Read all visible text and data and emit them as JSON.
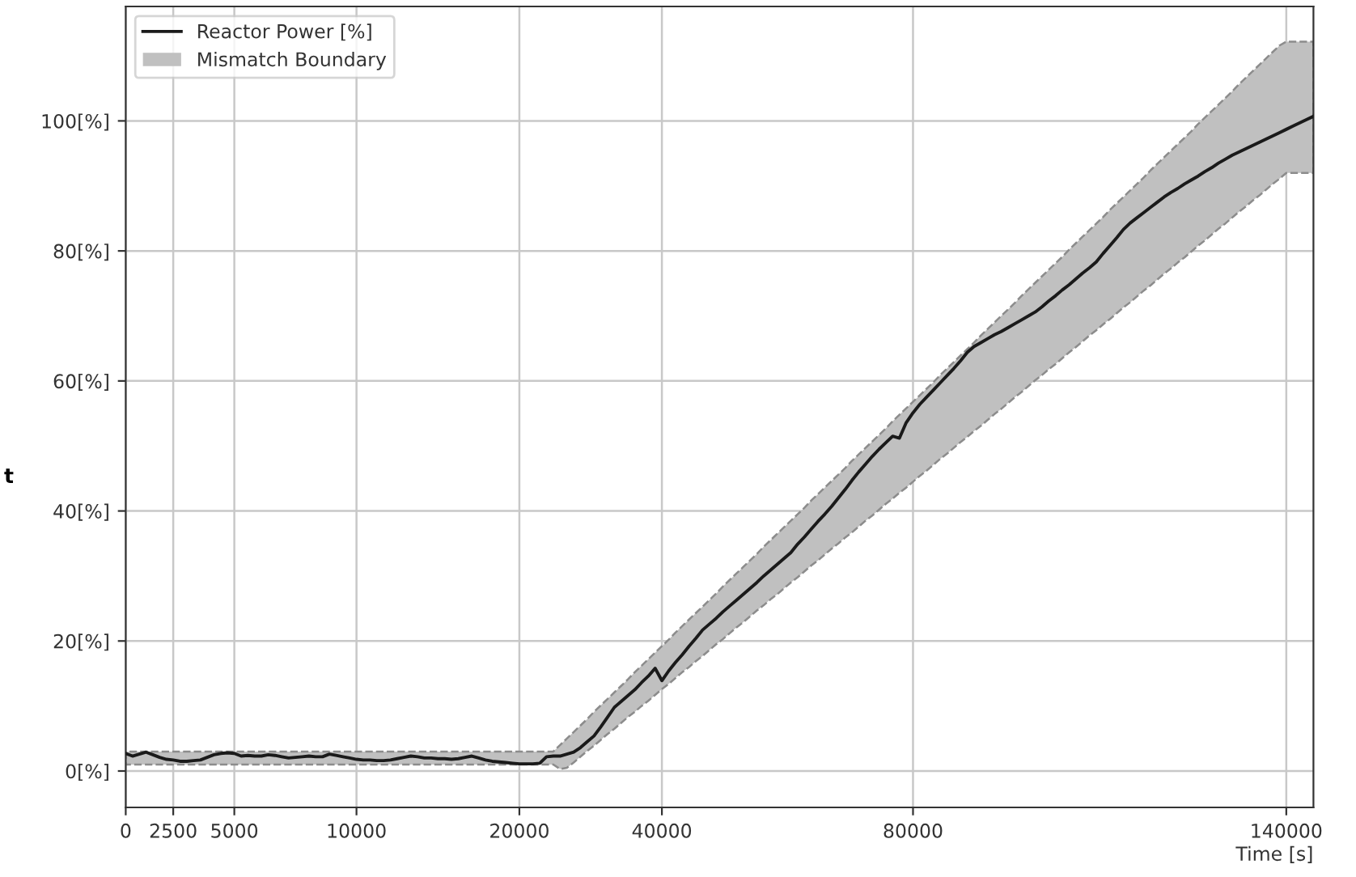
{
  "chart_data": {
    "type": "line",
    "xlabel": "Time [s]",
    "annotations": [
      "t"
    ],
    "categories": [
      "0",
      null,
      null,
      null,
      null,
      null,
      null,
      "2500",
      null,
      null,
      null,
      null,
      null,
      null,
      null,
      null,
      "5000",
      null,
      null,
      null,
      null,
      null,
      null,
      null,
      null,
      null,
      null,
      null,
      null,
      null,
      null,
      null,
      null,
      null,
      "10000",
      null,
      null,
      null,
      null,
      null,
      null,
      null,
      null,
      null,
      null,
      null,
      null,
      null,
      null,
      null,
      null,
      null,
      null,
      null,
      null,
      null,
      null,
      null,
      "20000",
      null,
      null,
      null,
      null,
      null,
      null,
      null,
      null,
      null,
      null,
      null,
      null,
      null,
      null,
      null,
      null,
      null,
      null,
      null,
      null,
      "40000",
      null,
      null,
      null,
      null,
      null,
      null,
      null,
      null,
      null,
      null,
      null,
      null,
      null,
      null,
      null,
      null,
      null,
      null,
      null,
      null,
      null,
      null,
      null,
      null,
      null,
      null,
      null,
      null,
      null,
      null,
      null,
      null,
      null,
      null,
      null,
      null,
      "80000",
      null,
      null,
      null,
      null,
      null,
      null,
      null,
      null,
      null,
      null,
      null,
      null,
      null,
      null,
      null,
      null,
      null,
      null,
      null,
      null,
      null,
      null,
      null,
      null,
      null,
      null,
      null,
      null,
      null,
      null,
      null,
      null,
      null,
      null,
      null,
      null,
      null,
      null,
      null,
      null,
      null,
      null,
      null,
      null,
      null,
      null,
      null,
      null,
      null,
      null,
      null,
      null,
      null,
      null,
      "140000",
      null,
      null,
      null,
      null
    ],
    "series": [
      {
        "name": "Reactor Power [%]",
        "color": "#1a1a1a",
        "line_style": "solid",
        "values": [
          2.7,
          2.3,
          2.6,
          2.9,
          2.5,
          2.1,
          1.8,
          1.7,
          1.5,
          1.5,
          1.6,
          1.7,
          2.1,
          2.5,
          2.7,
          2.8,
          2.7,
          2.3,
          2.4,
          2.3,
          2.3,
          2.5,
          2.4,
          2.2,
          2.0,
          2.1,
          2.2,
          2.3,
          2.2,
          2.2,
          2.6,
          2.4,
          2.2,
          2.0,
          1.8,
          1.7,
          1.7,
          1.6,
          1.6,
          1.7,
          1.9,
          2.1,
          2.3,
          2.2,
          2.0,
          2.0,
          1.9,
          1.9,
          1.8,
          1.9,
          2.1,
          2.3,
          2.0,
          1.7,
          1.5,
          1.4,
          1.3,
          1.2,
          1.1,
          1.1,
          1.1,
          1.2,
          2.2,
          2.3,
          2.3,
          2.6,
          2.9,
          3.6,
          4.5,
          5.4,
          6.8,
          8.3,
          9.8,
          10.7,
          11.6,
          12.5,
          13.6,
          14.6,
          15.8,
          13.9,
          15.4,
          16.7,
          17.9,
          19.2,
          20.4,
          21.7,
          22.6,
          23.5,
          24.5,
          25.4,
          26.3,
          27.2,
          28.1,
          29.0,
          30.0,
          30.9,
          31.8,
          32.7,
          33.6,
          34.9,
          36.0,
          37.2,
          38.4,
          39.5,
          40.7,
          42.0,
          43.3,
          44.7,
          46.0,
          47.2,
          48.4,
          49.5,
          50.5,
          51.5,
          51.2,
          53.6,
          55.1,
          56.4,
          57.5,
          58.6,
          59.7,
          60.8,
          61.9,
          63.1,
          64.4,
          65.3,
          65.9,
          66.5,
          67.1,
          67.6,
          68.2,
          68.8,
          69.4,
          70.0,
          70.6,
          71.4,
          72.3,
          73.1,
          74.0,
          74.8,
          75.7,
          76.6,
          77.4,
          78.3,
          79.6,
          80.8,
          82.0,
          83.3,
          84.3,
          85.1,
          85.9,
          86.7,
          87.5,
          88.3,
          89.0,
          89.6,
          90.3,
          90.9,
          91.5,
          92.2,
          92.8,
          93.5,
          94.1,
          94.7,
          95.2,
          95.7,
          96.2,
          96.7,
          97.2,
          97.7,
          98.2,
          98.7,
          99.2,
          99.7,
          100.2,
          100.7
        ]
      },
      {
        "name": "Mismatch Boundary",
        "type": "area",
        "color": "#c0c0c0",
        "line_style": "dashed",
        "values": [
          null,
          null,
          null,
          null,
          null,
          null,
          null,
          null,
          null,
          null,
          null,
          null,
          null,
          null,
          null,
          null,
          null,
          null,
          null,
          null,
          null,
          null,
          null,
          null,
          null,
          null,
          null,
          null,
          null,
          null,
          null,
          null,
          null,
          null,
          null,
          null,
          null,
          null,
          null,
          null,
          null,
          null,
          null,
          null,
          null,
          null,
          null,
          null,
          null,
          null,
          null,
          null,
          null,
          null,
          null,
          null,
          null,
          null,
          null,
          null,
          null,
          null,
          null,
          null,
          null,
          null,
          null,
          null,
          null,
          null,
          null,
          null,
          null,
          null,
          null,
          null,
          null,
          null,
          null,
          null,
          null,
          null,
          null,
          null,
          null,
          null,
          null,
          null,
          null,
          null,
          null,
          null,
          null,
          null,
          null,
          null,
          null,
          null,
          null,
          null,
          null,
          null,
          null,
          null,
          null,
          null,
          null,
          null,
          null,
          null,
          null,
          null,
          null,
          null,
          null,
          null,
          null,
          null,
          null,
          null,
          null,
          null,
          null,
          null,
          null,
          null,
          null,
          null,
          null,
          null,
          null,
          null,
          null,
          null,
          null,
          null,
          null,
          null,
          null,
          null,
          null,
          null,
          null,
          null,
          null,
          null,
          null,
          null,
          null,
          null,
          null,
          null,
          null,
          null,
          null,
          null,
          null,
          null,
          null,
          null,
          null,
          null,
          null,
          null,
          null,
          null,
          null,
          null,
          null,
          null,
          null,
          null,
          null,
          null,
          null,
          null
        ],
        "upper": [
          3.0,
          3.0,
          3.0,
          3.0,
          3.0,
          3.0,
          3.0,
          3.0,
          3.0,
          3.0,
          3.0,
          3.0,
          3.0,
          3.0,
          3.0,
          3.0,
          3.0,
          3.0,
          3.0,
          3.0,
          3.0,
          3.0,
          3.0,
          3.0,
          3.0,
          3.0,
          3.0,
          3.0,
          3.0,
          3.0,
          3.0,
          3.0,
          3.0,
          3.0,
          3.0,
          3.0,
          3.0,
          3.0,
          3.0,
          3.0,
          3.0,
          3.0,
          3.0,
          3.0,
          3.0,
          3.0,
          3.0,
          3.0,
          3.0,
          3.0,
          3.0,
          3.0,
          3.0,
          3.0,
          3.0,
          3.0,
          3.0,
          3.0,
          3.0,
          3.0,
          3.0,
          3.0,
          3.0,
          3.0,
          4.0,
          5.0,
          6.0,
          7.0,
          8.0,
          9.1,
          10.1,
          11.1,
          12.1,
          13.1,
          14.1,
          15.2,
          16.2,
          17.2,
          18.2,
          19.2,
          20.2,
          21.3,
          22.3,
          23.3,
          24.3,
          25.3,
          26.3,
          27.3,
          28.4,
          29.4,
          30.4,
          31.4,
          32.4,
          33.4,
          34.5,
          35.5,
          36.5,
          37.5,
          38.5,
          39.5,
          40.5,
          41.6,
          42.6,
          43.6,
          44.6,
          45.6,
          46.6,
          47.7,
          48.7,
          49.7,
          50.7,
          51.7,
          52.7,
          53.8,
          54.8,
          55.8,
          56.8,
          57.8,
          58.8,
          59.8,
          60.9,
          61.9,
          62.9,
          63.9,
          64.9,
          65.9,
          67.0,
          68.0,
          69.0,
          70.0,
          71.0,
          72.0,
          73.1,
          74.1,
          75.1,
          76.1,
          77.1,
          78.1,
          79.1,
          80.2,
          81.2,
          82.2,
          83.2,
          84.2,
          85.2,
          86.3,
          87.3,
          88.3,
          89.3,
          90.3,
          91.3,
          92.4,
          93.4,
          94.4,
          95.4,
          96.4,
          97.4,
          98.4,
          99.5,
          100.5,
          101.5,
          102.5,
          103.5,
          104.5,
          105.6,
          106.6,
          107.6,
          108.6,
          109.6,
          110.6,
          111.6,
          112.2,
          112.2,
          112.2,
          112.2,
          112.2
        ],
        "lower": [
          1.0,
          1.0,
          1.0,
          1.0,
          1.0,
          1.0,
          1.0,
          1.0,
          1.0,
          1.0,
          1.0,
          1.0,
          1.0,
          1.0,
          1.0,
          1.0,
          1.0,
          1.0,
          1.0,
          1.0,
          1.0,
          1.0,
          1.0,
          1.0,
          1.0,
          1.0,
          1.0,
          1.0,
          1.0,
          1.0,
          1.0,
          1.0,
          1.0,
          1.0,
          1.0,
          1.0,
          1.0,
          1.0,
          1.0,
          1.0,
          1.0,
          1.0,
          1.0,
          1.0,
          1.0,
          1.0,
          1.0,
          1.0,
          1.0,
          1.0,
          1.0,
          1.0,
          1.0,
          1.0,
          1.0,
          1.0,
          1.0,
          1.0,
          1.0,
          1.0,
          1.0,
          1.0,
          1.0,
          1.0,
          0.3,
          0.5,
          1.3,
          2.2,
          3.1,
          3.9,
          4.8,
          5.7,
          6.5,
          7.4,
          8.3,
          9.1,
          10.0,
          10.8,
          11.7,
          12.6,
          13.4,
          14.3,
          15.2,
          16.0,
          16.9,
          17.7,
          18.6,
          19.5,
          20.3,
          21.2,
          22.1,
          22.9,
          23.8,
          24.7,
          25.5,
          26.4,
          27.2,
          28.1,
          29.0,
          29.8,
          30.7,
          31.6,
          32.4,
          33.3,
          34.2,
          35.0,
          35.9,
          36.7,
          37.6,
          38.5,
          39.3,
          40.2,
          41.1,
          41.9,
          42.8,
          43.6,
          44.5,
          45.4,
          46.2,
          47.1,
          48.0,
          48.8,
          49.7,
          50.6,
          51.4,
          52.3,
          53.1,
          54.0,
          54.9,
          55.7,
          56.6,
          57.5,
          58.3,
          59.2,
          60.1,
          60.9,
          61.8,
          62.6,
          63.5,
          64.4,
          65.2,
          66.1,
          67.0,
          67.8,
          68.7,
          69.5,
          70.4,
          71.3,
          72.1,
          73.0,
          73.9,
          74.7,
          75.6,
          76.5,
          77.3,
          78.2,
          79.0,
          79.9,
          80.8,
          81.6,
          82.5,
          83.4,
          84.2,
          85.1,
          86.0,
          86.8,
          87.7,
          88.5,
          89.4,
          90.3,
          91.1,
          92.0,
          92.0,
          92.0,
          92.0,
          92.0
        ]
      }
    ],
    "ylim": [
      -5.6,
      117.6
    ],
    "yticks": [
      {
        "value": 0,
        "label": "0[%]"
      },
      {
        "value": 20,
        "label": "20[%]"
      },
      {
        "value": 40,
        "label": "40[%]"
      },
      {
        "value": 60,
        "label": "60[%]"
      },
      {
        "value": 80,
        "label": "80[%]"
      },
      {
        "value": 100,
        "label": "100[%]"
      }
    ],
    "grid": true,
    "legend": "top left"
  }
}
